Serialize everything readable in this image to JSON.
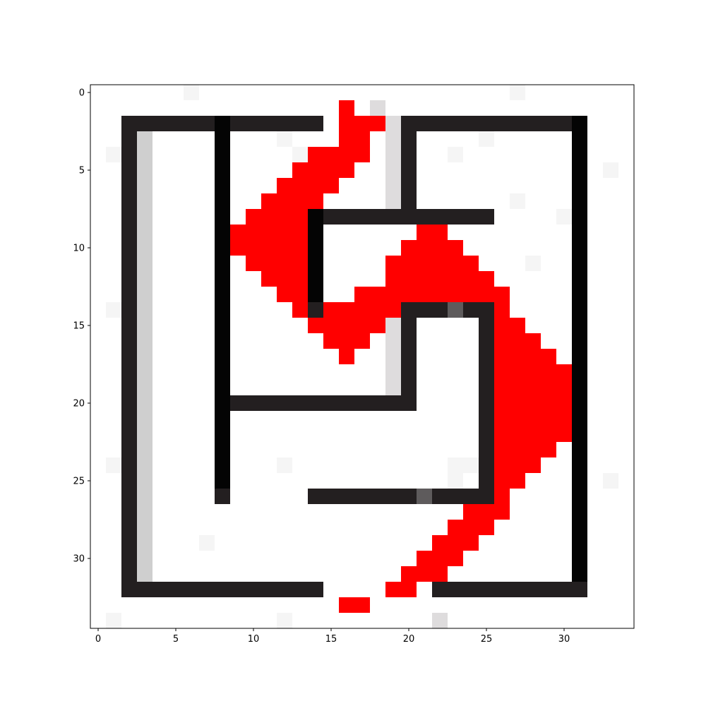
{
  "chart_data": {
    "type": "heatmap",
    "title": "",
    "xlabel": "",
    "ylabel": "",
    "x_ticks": [
      0,
      5,
      10,
      15,
      20,
      25,
      30
    ],
    "y_ticks": [
      0,
      5,
      10,
      15,
      20,
      25,
      30
    ],
    "x_tick_labels": [
      "0",
      "5",
      "10",
      "15",
      "20",
      "25",
      "30"
    ],
    "y_tick_labels": [
      "0",
      "5",
      "10",
      "15",
      "20",
      "25",
      "30"
    ],
    "xlim": [
      -0.5,
      34.5
    ],
    "ylim": [
      34.5,
      -0.5
    ],
    "grid": false,
    "dimensions": {
      "rows": 35,
      "cols": 35
    },
    "palette": {
      "W": "#ffffff",
      "D": "#231f20",
      "K": "#040404",
      "G": "#cfcfcf",
      "L": "#dedcdd",
      "M": "#5e5b5c",
      "R": "#ff0000",
      "n": "#f5f5f5"
    },
    "pixels": [
      "WWWWWWnWWWWWWWWWWWWWWWWWWWWnWWWWWWW",
      "WWWWWWWWWWWWWWWWRWLWWWWWWWWWWWWWWWW",
      "WWDDDDDDKDDDDDDWRRRLDDDDDDDDDDDKWWW",
      "WWDGWWWWKWWWnWWWRRWLDWWWWnWWWWWKWWW",
      "WnDGWWWWKWWWWnRRRRWLDWWnWWWWWWWKWWW",
      "WWDGWWWWKWWWWRRRRWWLDWWWWWWWWWWKWnW",
      "WWDGWWWWKWWWRRRRWWWLDWWWWWWWWWWKWWW",
      "WWDGWWWWKWWRRRRWWWWLDWWWWWWnWWWKWWW",
      "WWDGWWWWKWRRRRKDDDDDDDDDDDWWWWnKWWW",
      "WWDGWWWWKRRRRRKWWWWWWRRWWWWWWWWKWWW",
      "WWDGWWWWKRRRRRKWWWWWRRRRWWWWWWWKWWW",
      "WWDGWWWWKWRRRRKWWWWRRRRRRWWWnWWKWWW",
      "WWDGWWWWKWWRRRKWWWWRRRRRRRWWWWWKWWW",
      "WWDGWWWWKWWWRRKWWRRRRRRRRRRWWWWKWWW",
      "WnDGWWWWKWWWWRDRRRRRDDDMDDRWWWWKWWW",
      "WWDGWWWWKWWWWWRRRRRLDWWWWDRRWWWKWWW",
      "WWDGWWWWKWWWWWWRRRWLDWWWWDRRRWWKWWW",
      "WWDGWWWWKWWWWWWWRWWLDWWWWDRRRRWKWWW",
      "WWDGWWWWKWWWWWWWWWWLDWWWWDRRRRRKWWW",
      "WWDGWWWWKWWWWWWWWWWLDWWWWDRRRRRKWWW",
      "WWDGWWWWKDDDDDDDDDDDDWWWWDRRRRRKWWW",
      "WWDGWWWWKWWWWWWWWWWWWWWWWDRRRRRKWWW",
      "WWDGWWWWKWWWWWWWWWWWWWWWWDRRRRRKWWW",
      "WWDGWWWWKWWWWWWWWWWWWWWWWDRRRRWKWWW",
      "WnDGWWWWKWWWnWWWWWWWWWWnnDRRRWWKWWW",
      "WWDGWWWWKWWWWWWWWWWWWWWnWDRRWWWKWnW",
      "WWDGWWWWDWWWWWDDDDDDDMDDDDRWWWWKWWW",
      "WWDGWWWWWWWWWWWWWWWWWWWWRRRWWWWKWWW",
      "WWDGWWWWWWWWWWWWWWWWWWWRRRWWWWWKWWW",
      "WWDGWWWnWWWWWWWWWWWWWWRRRWWWWWWKWWW",
      "WWDGWWWWWWWWWWWWWWWWWRRRWWWWWWWKWWW",
      "WWDGWWWWWWWWWWWWWWWWRRRWWWWWWWWKWWW",
      "WWDDDDDDDDDDDDDWWWWRRWDDDDDDDDDDWWW",
      "WWWWWWWWWWWWWWWWRRWWWWWWWWWWWWWWWWW",
      "WnWWWWWWWWWWnWWWWWWWWWLWWWWWWWWWWWW"
    ]
  }
}
